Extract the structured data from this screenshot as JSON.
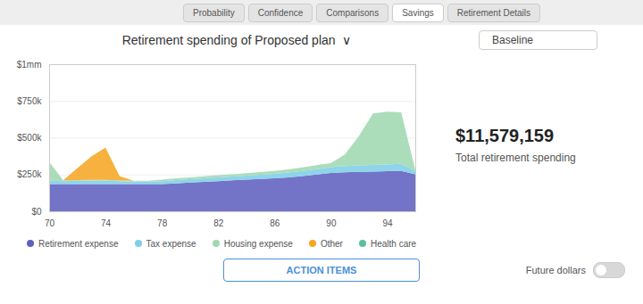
{
  "chart_data": {
    "type": "area",
    "stacked": true,
    "title": "Retirement spending of Proposed plan  ∨",
    "x": [
      70,
      71,
      72,
      73,
      74,
      75,
      76,
      77,
      78,
      79,
      80,
      81,
      82,
      83,
      84,
      85,
      86,
      87,
      88,
      89,
      90,
      91,
      92,
      93,
      94,
      95,
      96
    ],
    "series": [
      {
        "name": "Retirement expense",
        "color": "#6060c0",
        "values": [
          185000,
          185000,
          185000,
          185000,
          185000,
          185000,
          185000,
          185000,
          185000,
          190000,
          195000,
          200000,
          205000,
          210000,
          215000,
          220000,
          225000,
          230000,
          240000,
          250000,
          260000,
          265000,
          268000,
          270000,
          272000,
          275000,
          252000
        ]
      },
      {
        "name": "Tax expense",
        "color": "#7ecfe8",
        "values": [
          22000,
          20000,
          22000,
          23000,
          23000,
          20000,
          18000,
          18000,
          20000,
          22000,
          23000,
          24000,
          25000,
          26000,
          27000,
          28000,
          30000,
          33000,
          35000,
          37000,
          40000,
          42000,
          44000,
          45000,
          46000,
          47000,
          22000
        ]
      },
      {
        "name": "Housing expense",
        "color": "#a0d8b0",
        "values": [
          130000,
          5000,
          5000,
          5000,
          5000,
          5000,
          5000,
          5000,
          10000,
          12000,
          13000,
          14000,
          15000,
          16000,
          17000,
          18000,
          20000,
          22000,
          24000,
          26000,
          28000,
          80000,
          200000,
          350000,
          360000,
          350000,
          8000
        ]
      },
      {
        "name": "Other",
        "color": "#f5a623",
        "values": [
          0,
          0,
          80000,
          160000,
          220000,
          30000,
          0,
          0,
          0,
          0,
          0,
          0,
          0,
          0,
          0,
          0,
          0,
          0,
          0,
          0,
          0,
          0,
          0,
          0,
          0,
          0,
          0
        ]
      },
      {
        "name": "Health care",
        "color": "#5bbf99",
        "values": [
          0,
          0,
          0,
          0,
          0,
          0,
          0,
          0,
          0,
          0,
          0,
          0,
          0,
          0,
          0,
          0,
          0,
          0,
          0,
          0,
          0,
          0,
          0,
          0,
          0,
          0,
          0
        ]
      }
    ],
    "xlim": [
      70,
      96
    ],
    "xticks": [
      70,
      74,
      78,
      82,
      86,
      90,
      94
    ],
    "ylim": [
      0,
      1000000
    ],
    "yticks": [
      {
        "value": 0,
        "label": "$0"
      },
      {
        "value": 250000,
        "label": "$250k"
      },
      {
        "value": 500000,
        "label": "$500k"
      },
      {
        "value": 750000,
        "label": "$750k"
      },
      {
        "value": 1000000,
        "label": "$1mm"
      }
    ],
    "grid": true,
    "legend": "bottom",
    "annotations": [
      "Probability",
      "Confidence",
      "Comparisons",
      "Savings",
      "Retirement Details",
      "Baseline",
      "$11,579,159",
      "Total retirement spending",
      "Future dollars",
      "ACTION ITEMS"
    ]
  }
}
